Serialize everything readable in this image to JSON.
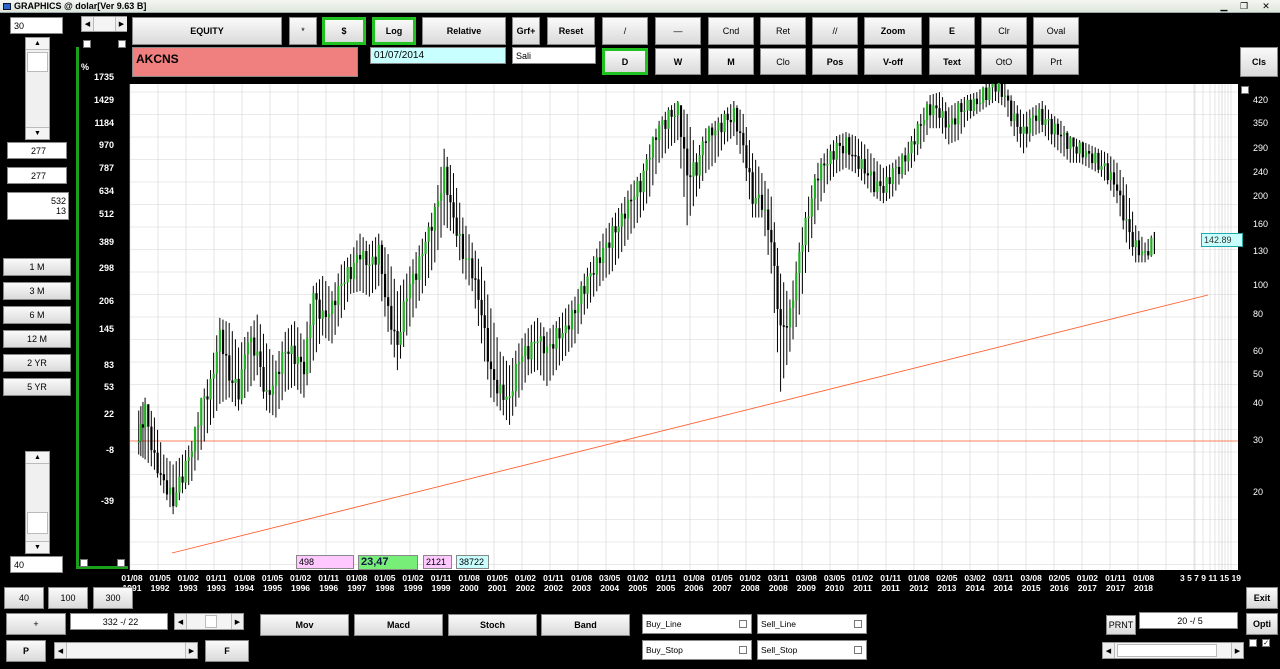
{
  "window": {
    "title": "GRAPHICS  @ dolar[Ver 9.63 B]"
  },
  "left": {
    "top_value": "30",
    "box1": "277",
    "box2": "277",
    "info_line1": "532",
    "info_line2": "13",
    "periods": [
      "1 M",
      "3 M",
      "6 M",
      "12 M",
      "2 YR",
      "5 YR"
    ],
    "bottom_value": "40"
  },
  "toolbar": {
    "equity": "EQUITY",
    "star": "*",
    "dollar": "$",
    "log": "Log",
    "relative": "Relative",
    "grf": "Grf+",
    "reset": "Reset",
    "line1": "/",
    "line2": "—",
    "cnd": "Cnd",
    "ret": "Ret",
    "parallel": "//",
    "zoom": "Zoom",
    "e": "E",
    "clr": "Clr",
    "oval": "Oval",
    "d": "D",
    "w": "W",
    "m": "M",
    "clo": "Clo",
    "pos": "Pos",
    "voff": "V-off",
    "text": "Text",
    "oto": "OtO",
    "prt": "Prt",
    "cls": "Cls"
  },
  "info": {
    "symbol": "AKCNS",
    "date": "01/07/2014",
    "day": "Sali"
  },
  "chart_data": {
    "type": "bar",
    "subtype": "ohlc-monthly",
    "scale": "log",
    "left_axis_title": "%",
    "left_axis_ticks": [
      "1735",
      "1429",
      "1184",
      "970",
      "787",
      "634",
      "512",
      "389",
      "298",
      "206",
      "145",
      "83",
      "53",
      "22",
      "-8",
      "-39"
    ],
    "right_axis_ticks": [
      "420",
      "350",
      "290",
      "240",
      "200",
      "160",
      "130",
      "100",
      "80",
      "60",
      "50",
      "40",
      "30",
      "20"
    ],
    "price_label": "142.89",
    "x_ticks": [
      {
        "top": "01/08",
        "bottom": "1991"
      },
      {
        "top": "01/05",
        "bottom": "1992"
      },
      {
        "top": "01/02",
        "bottom": "1993"
      },
      {
        "top": "01/11",
        "bottom": "1993"
      },
      {
        "top": "01/08",
        "bottom": "1994"
      },
      {
        "top": "01/05",
        "bottom": "1995"
      },
      {
        "top": "01/02",
        "bottom": "1996"
      },
      {
        "top": "01/11",
        "bottom": "1996"
      },
      {
        "top": "01/08",
        "bottom": "1997"
      },
      {
        "top": "01/05",
        "bottom": "1998"
      },
      {
        "top": "01/02",
        "bottom": "1999"
      },
      {
        "top": "01/11",
        "bottom": "1999"
      },
      {
        "top": "01/08",
        "bottom": "2000"
      },
      {
        "top": "01/05",
        "bottom": "2001"
      },
      {
        "top": "01/02",
        "bottom": "2002"
      },
      {
        "top": "01/11",
        "bottom": "2002"
      },
      {
        "top": "01/08",
        "bottom": "2003"
      },
      {
        "top": "03/05",
        "bottom": "2004"
      },
      {
        "top": "01/02",
        "bottom": "2005"
      },
      {
        "top": "01/11",
        "bottom": "2005"
      },
      {
        "top": "01/08",
        "bottom": "2006"
      },
      {
        "top": "01/05",
        "bottom": "2007"
      },
      {
        "top": "01/02",
        "bottom": "2008"
      },
      {
        "top": "03/11",
        "bottom": "2008"
      },
      {
        "top": "03/08",
        "bottom": "2009"
      },
      {
        "top": "03/05",
        "bottom": "2010"
      },
      {
        "top": "01/02",
        "bottom": "2011"
      },
      {
        "top": "01/11",
        "bottom": "2011"
      },
      {
        "top": "01/08",
        "bottom": "2012"
      },
      {
        "top": "02/05",
        "bottom": "2013"
      },
      {
        "top": "03/02",
        "bottom": "2014"
      },
      {
        "top": "03/11",
        "bottom": "2014"
      },
      {
        "top": "03/08",
        "bottom": "2015"
      },
      {
        "top": "02/05",
        "bottom": "2016"
      },
      {
        "top": "01/02",
        "bottom": "2017"
      },
      {
        "top": "01/11",
        "bottom": "2017"
      },
      {
        "top": "01/08",
        "bottom": "2018"
      }
    ],
    "x_tail": "3 5 7 9 11 15 19",
    "bars": [
      [
        1991.58,
        38,
        27,
        30
      ],
      [
        1991.75,
        42,
        26,
        38
      ],
      [
        1992.0,
        36,
        24,
        26
      ],
      [
        1992.25,
        27,
        20,
        22
      ],
      [
        1992.5,
        25,
        17,
        19
      ],
      [
        1992.75,
        27,
        20,
        23
      ],
      [
        1993.0,
        30,
        22,
        28
      ],
      [
        1993.25,
        42,
        28,
        40
      ],
      [
        1993.5,
        52,
        34,
        46
      ],
      [
        1993.75,
        78,
        40,
        70
      ],
      [
        1994.0,
        75,
        42,
        50
      ],
      [
        1994.25,
        62,
        38,
        44
      ],
      [
        1994.5,
        70,
        44,
        66
      ],
      [
        1994.75,
        80,
        50,
        58
      ],
      [
        1995.0,
        64,
        38,
        42
      ],
      [
        1995.25,
        56,
        36,
        50
      ],
      [
        1995.5,
        70,
        44,
        62
      ],
      [
        1995.75,
        76,
        46,
        58
      ],
      [
        1996.0,
        66,
        42,
        52
      ],
      [
        1996.25,
        100,
        56,
        92
      ],
      [
        1996.5,
        108,
        68,
        78
      ],
      [
        1996.75,
        96,
        64,
        86
      ],
      [
        1997.0,
        118,
        78,
        104
      ],
      [
        1997.25,
        128,
        94,
        112
      ],
      [
        1997.5,
        150,
        96,
        128
      ],
      [
        1997.75,
        138,
        92,
        116
      ],
      [
        1998.0,
        150,
        100,
        130
      ],
      [
        1998.25,
        128,
        70,
        82
      ],
      [
        1998.5,
        96,
        52,
        64
      ],
      [
        1998.75,
        110,
        68,
        96
      ],
      [
        1999.0,
        130,
        84,
        110
      ],
      [
        1999.25,
        152,
        100,
        140
      ],
      [
        1999.5,
        190,
        120,
        175
      ],
      [
        1999.75,
        290,
        160,
        240
      ],
      [
        2000.0,
        240,
        150,
        170
      ],
      [
        2000.25,
        170,
        110,
        130
      ],
      [
        2000.5,
        140,
        96,
        112
      ],
      [
        2000.75,
        116,
        64,
        80
      ],
      [
        2001.0,
        84,
        42,
        50
      ],
      [
        2001.25,
        60,
        38,
        44
      ],
      [
        2001.5,
        54,
        34,
        42
      ],
      [
        2001.75,
        64,
        42,
        58
      ],
      [
        2002.0,
        72,
        50,
        60
      ],
      [
        2002.25,
        78,
        52,
        66
      ],
      [
        2002.5,
        70,
        46,
        60
      ],
      [
        2002.75,
        76,
        52,
        68
      ],
      [
        2003.0,
        84,
        58,
        72
      ],
      [
        2003.25,
        92,
        64,
        84
      ],
      [
        2003.5,
        110,
        80,
        100
      ],
      [
        2003.75,
        126,
        92,
        112
      ],
      [
        2004.0,
        150,
        104,
        130
      ],
      [
        2004.25,
        170,
        112,
        150
      ],
      [
        2004.5,
        190,
        130,
        170
      ],
      [
        2004.75,
        220,
        150,
        200
      ],
      [
        2005.0,
        240,
        170,
        220
      ],
      [
        2005.25,
        300,
        200,
        280
      ],
      [
        2005.5,
        360,
        260,
        340
      ],
      [
        2005.75,
        400,
        290,
        370
      ],
      [
        2006.0,
        420,
        310,
        400
      ],
      [
        2006.25,
        380,
        160,
        240
      ],
      [
        2006.5,
        280,
        200,
        250
      ],
      [
        2006.75,
        340,
        240,
        320
      ],
      [
        2007.0,
        360,
        260,
        330
      ],
      [
        2007.25,
        390,
        300,
        360
      ],
      [
        2007.5,
        420,
        320,
        380
      ],
      [
        2007.75,
        380,
        260,
        300
      ],
      [
        2008.0,
        280,
        170,
        200
      ],
      [
        2008.25,
        240,
        170,
        190
      ],
      [
        2008.5,
        200,
        110,
        140
      ],
      [
        2008.75,
        110,
        44,
        70
      ],
      [
        2009.0,
        90,
        60,
        80
      ],
      [
        2009.25,
        140,
        80,
        130
      ],
      [
        2009.5,
        200,
        130,
        180
      ],
      [
        2009.75,
        260,
        180,
        240
      ],
      [
        2010.0,
        290,
        220,
        260
      ],
      [
        2010.25,
        320,
        240,
        290
      ],
      [
        2010.5,
        330,
        250,
        300
      ],
      [
        2010.75,
        320,
        240,
        270
      ],
      [
        2011.0,
        300,
        220,
        250
      ],
      [
        2011.25,
        270,
        200,
        220
      ],
      [
        2011.5,
        250,
        190,
        210
      ],
      [
        2011.75,
        260,
        200,
        240
      ],
      [
        2012.0,
        280,
        230,
        260
      ],
      [
        2012.25,
        320,
        250,
        300
      ],
      [
        2012.5,
        380,
        290,
        360
      ],
      [
        2012.75,
        440,
        340,
        400
      ],
      [
        2013.0,
        450,
        340,
        380
      ],
      [
        2013.25,
        400,
        300,
        340
      ],
      [
        2013.5,
        420,
        310,
        390
      ],
      [
        2013.75,
        440,
        360,
        410
      ],
      [
        2014.0,
        450,
        380,
        420
      ],
      [
        2014.25,
        480,
        400,
        450
      ],
      [
        2014.5,
        500,
        420,
        470
      ],
      [
        2014.75,
        480,
        400,
        430
      ],
      [
        2015.0,
        420,
        320,
        360
      ],
      [
        2015.25,
        380,
        280,
        330
      ],
      [
        2015.5,
        400,
        320,
        380
      ],
      [
        2015.75,
        420,
        330,
        370
      ],
      [
        2016.0,
        380,
        300,
        340
      ],
      [
        2016.25,
        360,
        280,
        320
      ],
      [
        2016.5,
        320,
        260,
        300
      ],
      [
        2016.75,
        310,
        260,
        290
      ],
      [
        2017.0,
        300,
        250,
        280
      ],
      [
        2017.25,
        290,
        240,
        260
      ],
      [
        2017.5,
        280,
        220,
        240
      ],
      [
        2017.75,
        260,
        190,
        210
      ],
      [
        2018.0,
        220,
        140,
        160
      ],
      [
        2018.25,
        160,
        120,
        135
      ],
      [
        2018.5,
        140,
        120,
        130
      ],
      [
        2018.75,
        152,
        128,
        142.89
      ]
    ]
  },
  "stats": {
    "s1": "498",
    "s2": "23,47",
    "s3": "2121",
    "s4": "38722"
  },
  "bottom": {
    "n40": "40",
    "n100": "100",
    "n300": "300",
    "plus": "+",
    "range": "332 -/ 22",
    "p": "P",
    "f": "F",
    "mov": "Mov",
    "macd": "Macd",
    "stoch": "Stoch",
    "band": "Band",
    "buy_line": "Buy_Line",
    "sell_line": "Sell_Line",
    "buy_stop": "Buy_Stop",
    "sell_stop": "Sell_Stop",
    "prnt": "PRNT",
    "ratio": "20 -/ 5",
    "exit": "Exit",
    "opti": "Opti"
  },
  "colors": {
    "up_bar": "#22b022",
    "down_bar": "#000000",
    "trend_line": "#ff5a2a",
    "grid": "#d4d4d4",
    "symbol_bg": "#f08080",
    "date_bg": "#c8ffff",
    "frame": "#1aa01a"
  }
}
